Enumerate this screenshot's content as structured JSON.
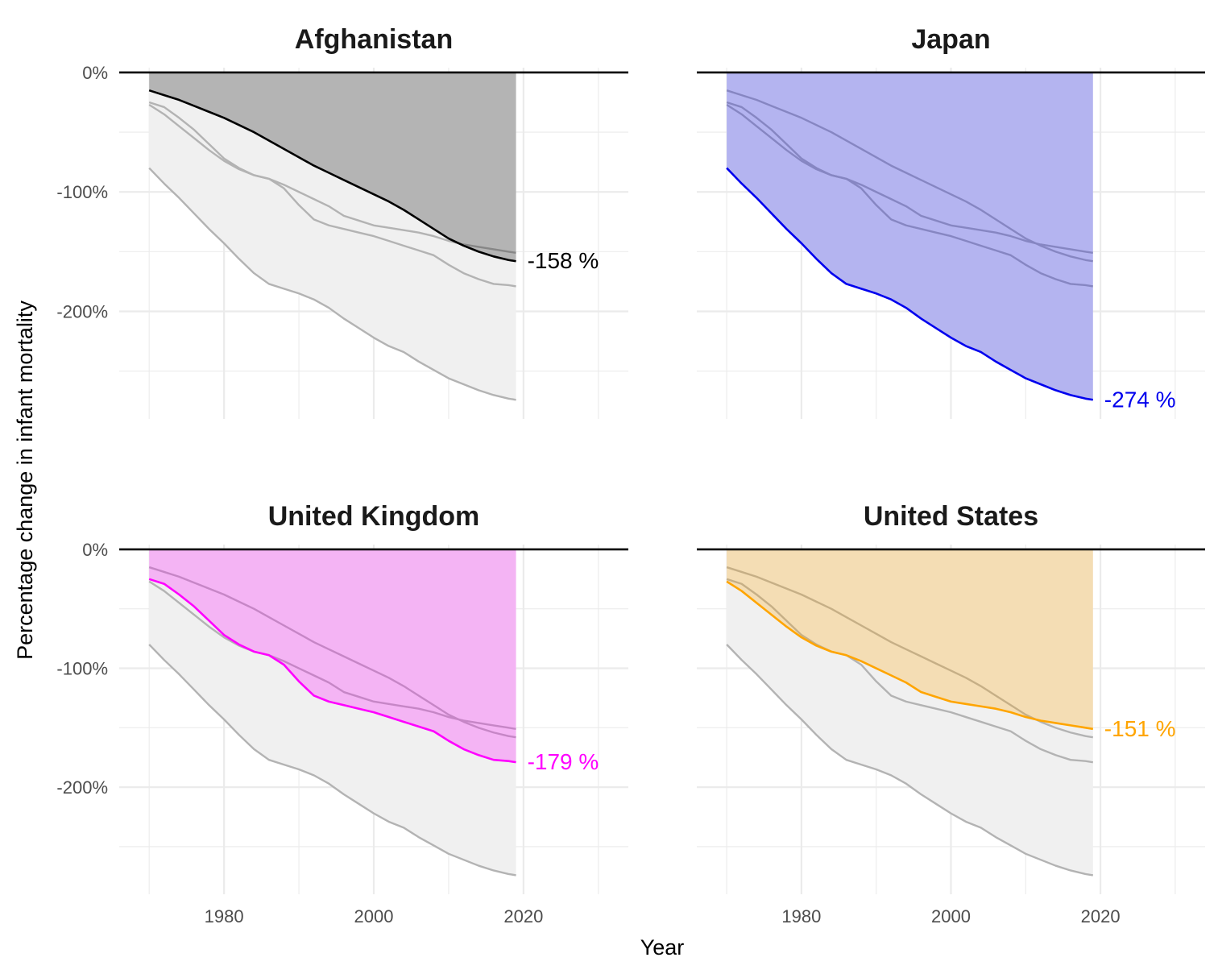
{
  "chart_data": {
    "type": "line",
    "xlabel": "Year",
    "ylabel": "Percentage change in infant mortality",
    "x_ticks": [
      1980,
      2000,
      2020
    ],
    "y_ticks": [
      0,
      -100,
      -200
    ],
    "y_tick_labels": [
      "0%",
      "-100%",
      "-200%"
    ],
    "xlim": [
      1966,
      2034
    ],
    "ylim": [
      -290,
      4
    ],
    "grid": true,
    "legend": "none",
    "x": [
      1970,
      1972,
      1974,
      1976,
      1978,
      1980,
      1982,
      1984,
      1986,
      1988,
      1990,
      1992,
      1994,
      1996,
      1998,
      2000,
      2002,
      2004,
      2006,
      2008,
      2010,
      2012,
      2014,
      2016,
      2018,
      2019
    ],
    "series": [
      {
        "name": "Afghanistan",
        "values": [
          -15,
          -19,
          -23,
          -28,
          -33,
          -38,
          -44,
          -50,
          -57,
          -64,
          -71,
          -78,
          -84,
          -90,
          -96,
          -102,
          -108,
          -115,
          -123,
          -131,
          -139,
          -145,
          -150,
          -154,
          -157,
          -158
        ]
      },
      {
        "name": "Japan",
        "values": [
          -80,
          -93,
          -105,
          -118,
          -131,
          -143,
          -156,
          -168,
          -177,
          -181,
          -185,
          -190,
          -197,
          -206,
          -214,
          -222,
          -229,
          -234,
          -242,
          -249,
          -256,
          -261,
          -266,
          -270,
          -273,
          -274
        ]
      },
      {
        "name": "United Kingdom",
        "values": [
          -25,
          -29,
          -38,
          -48,
          -60,
          -72,
          -80,
          -86,
          -89,
          -97,
          -111,
          -123,
          -128,
          -131,
          -134,
          -137,
          -141,
          -145,
          -149,
          -153,
          -161,
          -168,
          -173,
          -177,
          -178,
          -179
        ]
      },
      {
        "name": "United States",
        "values": [
          -27,
          -35,
          -45,
          -55,
          -65,
          -74,
          -81,
          -86,
          -89,
          -94,
          -100,
          -106,
          -112,
          -120,
          -124,
          -128,
          -130,
          -132,
          -134,
          -137,
          -141,
          -144,
          -146,
          -148,
          -150,
          -151
        ]
      }
    ],
    "panels": [
      {
        "title": "Afghanistan",
        "highlight": "Afghanistan",
        "color": "#000000",
        "fill": "#adadad",
        "end_label": "-158 %"
      },
      {
        "title": "Japan",
        "highlight": "Japan",
        "color": "#0000ee",
        "fill": "#a9abe2",
        "end_label": "-274 %"
      },
      {
        "title": "United Kingdom",
        "highlight": "United Kingdom",
        "color": "#ff00ff",
        "fill": "#dfa9e0",
        "end_label": "-179 %"
      },
      {
        "title": "United States",
        "highlight": "United States",
        "color": "#ffa500",
        "fill": "#e2cfab",
        "end_label": "-151 %"
      }
    ]
  }
}
